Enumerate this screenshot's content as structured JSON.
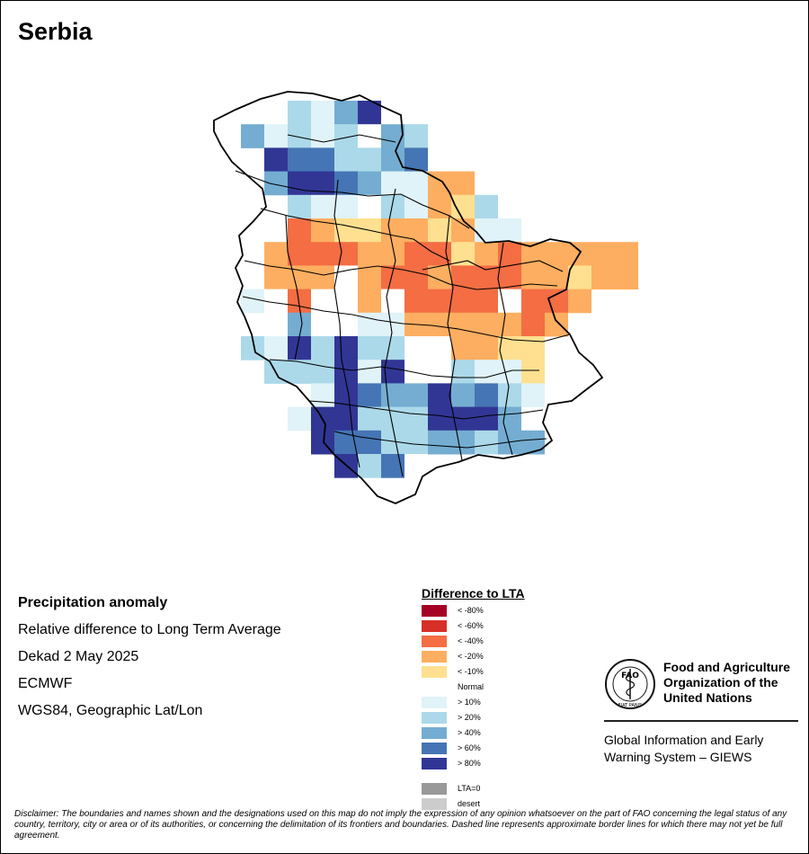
{
  "title": "Serbia",
  "info": {
    "heading": "Precipitation anomaly",
    "line1": "Relative difference to Long Term Average",
    "line2": "Dekad 2 May 2025",
    "line3": "ECMWF",
    "line4": "WGS84, Geographic Lat/Lon"
  },
  "legend": {
    "title": "Difference to LTA",
    "items": [
      {
        "label": "< -80%",
        "color": "#a50026"
      },
      {
        "label": "< -60%",
        "color": "#d73027"
      },
      {
        "label": "< -40%",
        "color": "#f46d43"
      },
      {
        "label": "< -20%",
        "color": "#fdae61"
      },
      {
        "label": "< -10%",
        "color": "#fee090"
      },
      {
        "label": "Normal",
        "color": "#ffffff"
      },
      {
        "label": "> 10%",
        "color": "#e0f3f8"
      },
      {
        "label": "> 20%",
        "color": "#abd9e9"
      },
      {
        "label": "> 40%",
        "color": "#74add1"
      },
      {
        "label": "> 60%",
        "color": "#4575b4"
      },
      {
        "label": "> 80%",
        "color": "#313695"
      }
    ],
    "extra": [
      {
        "label": "LTA=0",
        "color": "#999999"
      },
      {
        "label": "desert",
        "color": "#cccccc"
      }
    ]
  },
  "fao": {
    "name_line1": "Food and Agriculture",
    "name_line2": "Organization of the",
    "name_line3": "United Nations",
    "logo_text": "FAO",
    "logo_ring": "FIAT PANIS",
    "giews_line1": "Global Information and Early",
    "giews_line2": "Warning System – GIEWS"
  },
  "disclaimer": "Disclaimer: The boundaries and names shown and the designations used on this map do not imply the expression of any opinion whatsoever on the part of FAO concerning the legal status of any country, territory, city or area or of its authorities, or concerning the delimitation of its frontiers and boundaries. Dashed line represents approximate border lines for which there may not yet be full agreement.",
  "map_grid": {
    "row_labels_note": "",
    "rows": [
      "....01......",
      "...........",
      "............",
      "............"
    ],
    "cells": [
      {
        "r": 0,
        "c": 3,
        "v": "> 20%"
      },
      {
        "r": 0,
        "c": 4,
        "v": "> 10%"
      },
      {
        "r": 0,
        "c": 5,
        "v": "> 40%"
      },
      {
        "r": 0,
        "c": 6,
        "v": "> 80%"
      },
      {
        "r": 1,
        "c": 1,
        "v": "> 40%"
      },
      {
        "r": 1,
        "c": 2,
        "v": "> 10%"
      },
      {
        "r": 1,
        "c": 3,
        "v": "> 20%"
      },
      {
        "r": 1,
        "c": 4,
        "v": "> 10%"
      },
      {
        "r": 1,
        "c": 5,
        "v": "> 20%"
      },
      {
        "r": 1,
        "c": 6,
        "v": "Normal"
      },
      {
        "r": 1,
        "c": 7,
        "v": "> 40%"
      },
      {
        "r": 1,
        "c": 8,
        "v": "> 20%"
      },
      {
        "r": 2,
        "c": 2,
        "v": "> 80%"
      },
      {
        "r": 2,
        "c": 3,
        "v": "> 60%"
      },
      {
        "r": 2,
        "c": 4,
        "v": "> 60%"
      },
      {
        "r": 2,
        "c": 5,
        "v": "> 20%"
      },
      {
        "r": 2,
        "c": 6,
        "v": "> 20%"
      },
      {
        "r": 2,
        "c": 7,
        "v": "> 40%"
      },
      {
        "r": 2,
        "c": 8,
        "v": "> 60%"
      },
      {
        "r": 3,
        "c": 2,
        "v": "> 40%"
      },
      {
        "r": 3,
        "c": 3,
        "v": "> 80%"
      },
      {
        "r": 3,
        "c": 4,
        "v": "> 80%"
      },
      {
        "r": 3,
        "c": 5,
        "v": "> 60%"
      },
      {
        "r": 3,
        "c": 6,
        "v": "> 40%"
      },
      {
        "r": 3,
        "c": 7,
        "v": "> 10%"
      },
      {
        "r": 3,
        "c": 8,
        "v": "> 10%"
      },
      {
        "r": 3,
        "c": 9,
        "v": "< -20%"
      },
      {
        "r": 3,
        "c": 10,
        "v": "< -20%"
      },
      {
        "r": 4,
        "c": 3,
        "v": "> 20%"
      },
      {
        "r": 4,
        "c": 4,
        "v": "> 10%"
      },
      {
        "r": 4,
        "c": 5,
        "v": "> 10%"
      },
      {
        "r": 4,
        "c": 6,
        "v": "Normal"
      },
      {
        "r": 4,
        "c": 7,
        "v": "> 20%"
      },
      {
        "r": 4,
        "c": 8,
        "v": "> 10%"
      },
      {
        "r": 4,
        "c": 9,
        "v": "< -20%"
      },
      {
        "r": 4,
        "c": 10,
        "v": "< -10%"
      },
      {
        "r": 4,
        "c": 11,
        "v": "> 20%"
      },
      {
        "r": 5,
        "c": 3,
        "v": "< -40%"
      },
      {
        "r": 5,
        "c": 4,
        "v": "< -20%"
      },
      {
        "r": 5,
        "c": 5,
        "v": "< -10%"
      },
      {
        "r": 5,
        "c": 6,
        "v": "< -10%"
      },
      {
        "r": 5,
        "c": 7,
        "v": "< -20%"
      },
      {
        "r": 5,
        "c": 8,
        "v": "< -20%"
      },
      {
        "r": 5,
        "c": 9,
        "v": "< -10%"
      },
      {
        "r": 5,
        "c": 10,
        "v": "< -20%"
      },
      {
        "r": 5,
        "c": 11,
        "v": "> 10%"
      },
      {
        "r": 5,
        "c": 12,
        "v": "> 10%"
      },
      {
        "r": 6,
        "c": 2,
        "v": "< -20%"
      },
      {
        "r": 6,
        "c": 3,
        "v": "< -40%"
      },
      {
        "r": 6,
        "c": 4,
        "v": "< -40%"
      },
      {
        "r": 6,
        "c": 5,
        "v": "< -40%"
      },
      {
        "r": 6,
        "c": 6,
        "v": "< -20%"
      },
      {
        "r": 6,
        "c": 7,
        "v": "< -20%"
      },
      {
        "r": 6,
        "c": 8,
        "v": "< -40%"
      },
      {
        "r": 6,
        "c": 9,
        "v": "< -40%"
      },
      {
        "r": 6,
        "c": 10,
        "v": "< -10%"
      },
      {
        "r": 6,
        "c": 11,
        "v": "< -20%"
      },
      {
        "r": 6,
        "c": 12,
        "v": "< -40%"
      },
      {
        "r": 6,
        "c": 13,
        "v": "< -20%"
      },
      {
        "r": 6,
        "c": 14,
        "v": "< -20%"
      },
      {
        "r": 6,
        "c": 15,
        "v": "< -20%"
      },
      {
        "r": 6,
        "c": 16,
        "v": "< -20%"
      },
      {
        "r": 6,
        "c": 17,
        "v": "< -20%"
      },
      {
        "r": 7,
        "c": 2,
        "v": "< -20%"
      },
      {
        "r": 7,
        "c": 3,
        "v": "< -20%"
      },
      {
        "r": 7,
        "c": 4,
        "v": "< -20%"
      },
      {
        "r": 7,
        "c": 5,
        "v": "Normal"
      },
      {
        "r": 7,
        "c": 6,
        "v": "< -20%"
      },
      {
        "r": 7,
        "c": 7,
        "v": "< -40%"
      },
      {
        "r": 7,
        "c": 8,
        "v": "< -40%"
      },
      {
        "r": 7,
        "c": 9,
        "v": "< -20%"
      },
      {
        "r": 7,
        "c": 10,
        "v": "< -40%"
      },
      {
        "r": 7,
        "c": 11,
        "v": "< -40%"
      },
      {
        "r": 7,
        "c": 12,
        "v": "< -40%"
      },
      {
        "r": 7,
        "c": 13,
        "v": "< -20%"
      },
      {
        "r": 7,
        "c": 14,
        "v": "< -20%"
      },
      {
        "r": 7,
        "c": 15,
        "v": "< -10%"
      },
      {
        "r": 7,
        "c": 16,
        "v": "< -20%"
      },
      {
        "r": 7,
        "c": 17,
        "v": "< -20%"
      },
      {
        "r": 8,
        "c": 1,
        "v": "> 10%"
      },
      {
        "r": 8,
        "c": 2,
        "v": "Normal"
      },
      {
        "r": 8,
        "c": 3,
        "v": "< -40%"
      },
      {
        "r": 8,
        "c": 4,
        "v": "Normal"
      },
      {
        "r": 8,
        "c": 5,
        "v": "Normal"
      },
      {
        "r": 8,
        "c": 6,
        "v": "< -20%"
      },
      {
        "r": 8,
        "c": 7,
        "v": "Normal"
      },
      {
        "r": 8,
        "c": 8,
        "v": "< -40%"
      },
      {
        "r": 8,
        "c": 9,
        "v": "< -40%"
      },
      {
        "r": 8,
        "c": 10,
        "v": "< -40%"
      },
      {
        "r": 8,
        "c": 11,
        "v": "< -40%"
      },
      {
        "r": 8,
        "c": 12,
        "v": "Normal"
      },
      {
        "r": 8,
        "c": 13,
        "v": "< -40%"
      },
      {
        "r": 8,
        "c": 14,
        "v": "< -40%"
      },
      {
        "r": 8,
        "c": 15,
        "v": "< -20%"
      },
      {
        "r": 9,
        "c": 2,
        "v": "Normal"
      },
      {
        "r": 9,
        "c": 3,
        "v": "> 40%"
      },
      {
        "r": 9,
        "c": 4,
        "v": "Normal"
      },
      {
        "r": 9,
        "c": 5,
        "v": "Normal"
      },
      {
        "r": 9,
        "c": 6,
        "v": "> 10%"
      },
      {
        "r": 9,
        "c": 7,
        "v": "> 10%"
      },
      {
        "r": 9,
        "c": 8,
        "v": "< -20%"
      },
      {
        "r": 9,
        "c": 9,
        "v": "< -20%"
      },
      {
        "r": 9,
        "c": 10,
        "v": "< -20%"
      },
      {
        "r": 9,
        "c": 11,
        "v": "< -20%"
      },
      {
        "r": 9,
        "c": 12,
        "v": "< -20%"
      },
      {
        "r": 9,
        "c": 13,
        "v": "< -40%"
      },
      {
        "r": 9,
        "c": 14,
        "v": "< -20%"
      },
      {
        "r": 10,
        "c": 1,
        "v": "> 20%"
      },
      {
        "r": 10,
        "c": 2,
        "v": "> 10%"
      },
      {
        "r": 10,
        "c": 3,
        "v": "> 80%"
      },
      {
        "r": 10,
        "c": 4,
        "v": "> 20%"
      },
      {
        "r": 10,
        "c": 5,
        "v": "> 80%"
      },
      {
        "r": 10,
        "c": 6,
        "v": "> 20%"
      },
      {
        "r": 10,
        "c": 7,
        "v": "> 20%"
      },
      {
        "r": 10,
        "c": 8,
        "v": "Normal"
      },
      {
        "r": 10,
        "c": 9,
        "v": "Normal"
      },
      {
        "r": 10,
        "c": 10,
        "v": "< -20%"
      },
      {
        "r": 10,
        "c": 11,
        "v": "< -20%"
      },
      {
        "r": 10,
        "c": 12,
        "v": "< -10%"
      },
      {
        "r": 10,
        "c": 13,
        "v": "< -10%"
      },
      {
        "r": 11,
        "c": 2,
        "v": "> 20%"
      },
      {
        "r": 11,
        "c": 3,
        "v": "> 20%"
      },
      {
        "r": 11,
        "c": 4,
        "v": "> 20%"
      },
      {
        "r": 11,
        "c": 5,
        "v": "> 80%"
      },
      {
        "r": 11,
        "c": 6,
        "v": "> 10%"
      },
      {
        "r": 11,
        "c": 7,
        "v": "> 80%"
      },
      {
        "r": 11,
        "c": 8,
        "v": "Normal"
      },
      {
        "r": 11,
        "c": 9,
        "v": "Normal"
      },
      {
        "r": 11,
        "c": 10,
        "v": "> 20%"
      },
      {
        "r": 11,
        "c": 11,
        "v": "> 10%"
      },
      {
        "r": 11,
        "c": 12,
        "v": "> 10%"
      },
      {
        "r": 11,
        "c": 13,
        "v": "< -10%"
      },
      {
        "r": 12,
        "c": 4,
        "v": "> 10%"
      },
      {
        "r": 12,
        "c": 5,
        "v": "> 80%"
      },
      {
        "r": 12,
        "c": 6,
        "v": "> 60%"
      },
      {
        "r": 12,
        "c": 7,
        "v": "> 40%"
      },
      {
        "r": 12,
        "c": 8,
        "v": "> 40%"
      },
      {
        "r": 12,
        "c": 9,
        "v": "> 80%"
      },
      {
        "r": 12,
        "c": 10,
        "v": "> 40%"
      },
      {
        "r": 12,
        "c": 11,
        "v": "> 60%"
      },
      {
        "r": 12,
        "c": 12,
        "v": "> 20%"
      },
      {
        "r": 12,
        "c": 13,
        "v": "> 10%"
      },
      {
        "r": 13,
        "c": 3,
        "v": "> 10%"
      },
      {
        "r": 13,
        "c": 4,
        "v": "> 80%"
      },
      {
        "r": 13,
        "c": 5,
        "v": "> 80%"
      },
      {
        "r": 13,
        "c": 6,
        "v": "> 20%"
      },
      {
        "r": 13,
        "c": 7,
        "v": "> 20%"
      },
      {
        "r": 13,
        "c": 8,
        "v": "> 20%"
      },
      {
        "r": 13,
        "c": 9,
        "v": "> 80%"
      },
      {
        "r": 13,
        "c": 10,
        "v": "> 80%"
      },
      {
        "r": 13,
        "c": 11,
        "v": "> 80%"
      },
      {
        "r": 13,
        "c": 12,
        "v": "> 40%"
      },
      {
        "r": 14,
        "c": 4,
        "v": "> 80%"
      },
      {
        "r": 14,
        "c": 5,
        "v": "> 60%"
      },
      {
        "r": 14,
        "c": 6,
        "v": "> 60%"
      },
      {
        "r": 14,
        "c": 7,
        "v": "> 20%"
      },
      {
        "r": 14,
        "c": 8,
        "v": "> 20%"
      },
      {
        "r": 14,
        "c": 9,
        "v": "> 40%"
      },
      {
        "r": 14,
        "c": 10,
        "v": "> 40%"
      },
      {
        "r": 14,
        "c": 11,
        "v": "> 20%"
      },
      {
        "r": 14,
        "c": 12,
        "v": "> 40%"
      },
      {
        "r": 14,
        "c": 13,
        "v": "> 40%"
      },
      {
        "r": 15,
        "c": 5,
        "v": "> 80%"
      },
      {
        "r": 15,
        "c": 6,
        "v": "> 20%"
      },
      {
        "r": 15,
        "c": 7,
        "v": "> 60%"
      },
      {
        "r": 15,
        "c": 8,
        "v": "Normal"
      }
    ]
  }
}
